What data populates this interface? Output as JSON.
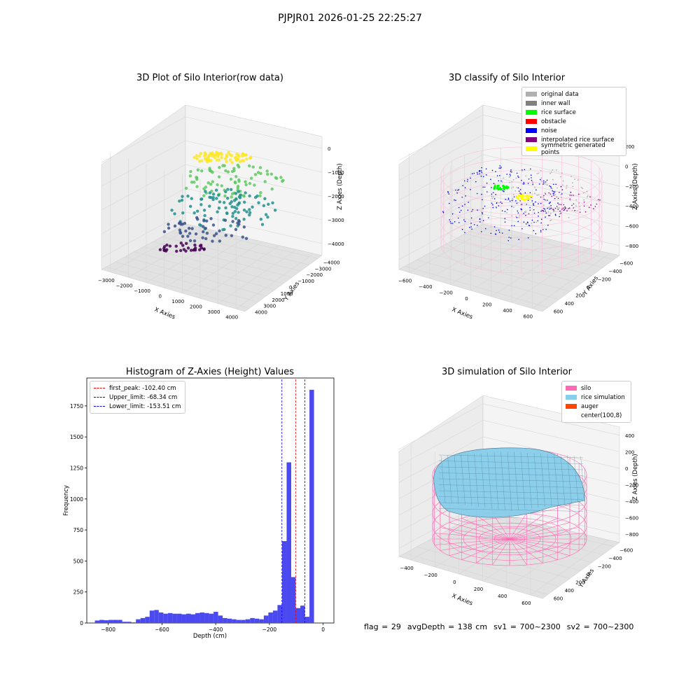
{
  "suptitle": "PJPJR01 2026-01-25 22:25:27",
  "status_line": {
    "flag": "flag = 29",
    "avg_depth": "avgDepth = 138 cm",
    "sv1": "sv1 = 700~2300",
    "sv2": "sv2 = 700~2300"
  },
  "colors": {
    "histogram_bar": "#4a4af0",
    "first_peak_line": "#ff0000",
    "limit_lines": "#0000ff",
    "silo_wire": "#ff69b4",
    "rice_surface": "#87ceeb",
    "noise": "#0000ff",
    "rice_points": "#00ff00",
    "symmetric": "#ffff00"
  },
  "chart_data": [
    {
      "type": "scatter",
      "title": "3D Plot of Silo Interior(row data)",
      "xlabel": "X Axies",
      "ylabel": "Y Axies",
      "zlabel": "Z Axies (Depth)",
      "x_ticks": [
        "−3000",
        "−2000",
        "−1000",
        "0",
        "1000",
        "2000",
        "3000",
        "4000"
      ],
      "y_ticks": [
        "−4000",
        "−3000",
        "−2000",
        "−1000",
        "0",
        "1000",
        "2000",
        "3000",
        "4000"
      ],
      "z_ticks": [
        "0",
        "−1000",
        "−2000",
        "−3000",
        "−4000"
      ],
      "colormap": "viridis"
    },
    {
      "type": "scatter",
      "title": "3D classify of Silo Interior",
      "xlabel": "X Axies",
      "ylabel": "Y Axies",
      "zlabel": "Z Axies (Depth)",
      "x_ticks": [
        "−600",
        "−400",
        "−200",
        "0",
        "200",
        "400",
        "600"
      ],
      "y_ticks": [
        "−600",
        "−400",
        "−200",
        "0",
        "200",
        "400",
        "600"
      ],
      "z_ticks": [
        "200",
        "0",
        "−200",
        "−400",
        "−600",
        "−800"
      ],
      "legend": [
        {
          "label": "original data",
          "color": "#b0b0b0"
        },
        {
          "label": "inner wall",
          "color": "#808080"
        },
        {
          "label": "rice surface",
          "color": "#00ff00"
        },
        {
          "label": "obstacle",
          "color": "#ff0000"
        },
        {
          "label": "noise",
          "color": "#0000ff"
        },
        {
          "label": "interpolated rice surface",
          "color": "#800080"
        },
        {
          "label": "symmetric generated points",
          "color": "#ffff00"
        }
      ],
      "legend_position": "top-right"
    },
    {
      "type": "bar",
      "title": "Histogram of Z-Axies (Height) Values",
      "xlabel": "Depth (cm)",
      "ylabel": "Frequency",
      "xlim": [
        -880,
        40
      ],
      "ylim": [
        0,
        1975
      ],
      "x_ticks": [
        -800,
        -600,
        -400,
        -200,
        0
      ],
      "x_tick_labels": [
        "−800",
        "−600",
        "−400",
        "−200",
        "0"
      ],
      "y_ticks": [
        0,
        250,
        500,
        750,
        1000,
        1250,
        1500,
        1750
      ],
      "y_tick_labels": [
        "0",
        "250",
        "500",
        "750",
        "1000",
        "1250",
        "1500",
        "1750"
      ],
      "bin_width": 17,
      "bin_start": -850,
      "values": [
        20,
        25,
        22,
        25,
        25,
        25,
        10,
        10,
        5,
        30,
        40,
        50,
        100,
        105,
        85,
        75,
        80,
        75,
        75,
        70,
        75,
        70,
        80,
        85,
        80,
        75,
        90,
        60,
        40,
        35,
        30,
        25,
        25,
        30,
        40,
        35,
        30,
        60,
        85,
        100,
        145,
        660,
        1295,
        370,
        120,
        140,
        50,
        1880
      ],
      "vlines": [
        {
          "label": "first_peak: -102.40 cm",
          "x": -102.4,
          "color": "#ff0000"
        },
        {
          "label": "Upper_limit: -68.34 cm",
          "x": -68.34,
          "color": "#0000ff"
        },
        {
          "label": "Lower_limit: -153.51 cm",
          "x": -153.51,
          "color": "#0000ff"
        }
      ],
      "legend_position": "top-left"
    },
    {
      "type": "area",
      "title": "3D simulation of Silo Interior",
      "xlabel": "X Axies",
      "ylabel": "Y Axies",
      "zlabel": "Z Axies (Depth)",
      "x_ticks": [
        "−400",
        "−200",
        "0",
        "200",
        "400",
        "600"
      ],
      "y_ticks": [
        "−600",
        "−400",
        "−200",
        "0",
        "200",
        "400",
        "600"
      ],
      "z_ticks": [
        "400",
        "200",
        "0",
        "−200",
        "−400",
        "−600",
        "−800"
      ],
      "legend": [
        {
          "label": "silo",
          "color": "#ff69b4"
        },
        {
          "label": "rice simulation",
          "color": "#87ceeb"
        },
        {
          "label": "auger",
          "color": "#ff4500"
        },
        {
          "label": "center(100,8)",
          "color": "#ffffff"
        }
      ],
      "legend_position": "top-right"
    }
  ]
}
